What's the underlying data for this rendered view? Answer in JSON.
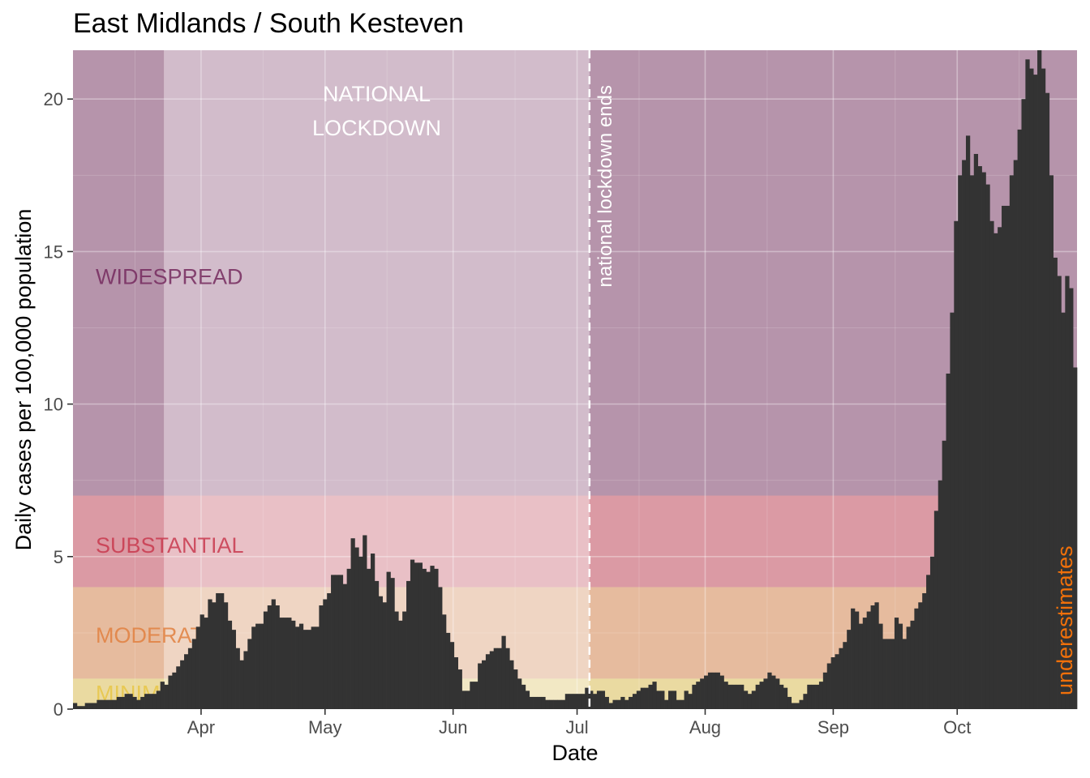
{
  "chart_data": {
    "type": "bar",
    "title": "East Midlands / South Kesteven",
    "xlabel": "Date",
    "ylabel": "Daily cases per 100,000 population",
    "x_start": "2020-03-01",
    "x_end": "2020-10-30",
    "ylim": [
      0,
      21.6
    ],
    "y_ticks": [
      0,
      5,
      10,
      15,
      20
    ],
    "x_ticks": [
      {
        "date": "2020-04-01",
        "label": "Apr"
      },
      {
        "date": "2020-05-01",
        "label": "May"
      },
      {
        "date": "2020-06-01",
        "label": "Jun"
      },
      {
        "date": "2020-07-01",
        "label": "Jul"
      },
      {
        "date": "2020-08-01",
        "label": "Aug"
      },
      {
        "date": "2020-09-01",
        "label": "Sep"
      },
      {
        "date": "2020-10-01",
        "label": "Oct"
      }
    ],
    "grid": true,
    "bands": [
      {
        "label": "MINIMAL",
        "from": 0,
        "to": 1,
        "color": "#e8c547"
      },
      {
        "label": "MODERATE",
        "from": 1,
        "to": 4,
        "color": "#e08040"
      },
      {
        "label": "SUBSTANTIAL",
        "from": 4,
        "to": 7,
        "color": "#c8384e"
      },
      {
        "label": "WIDESPREAD",
        "from": 7,
        "to": 21.6,
        "color": "#762a5e"
      }
    ],
    "lockdown": {
      "label_line1": "NATIONAL",
      "label_line2": "LOCKDOWN",
      "start": "2020-03-23",
      "end": "2020-07-04"
    },
    "vline": {
      "date": "2020-07-04",
      "label": "national lockdown ends"
    },
    "note": {
      "label": "underestimates",
      "color": "#f0700a"
    },
    "bar_color": "#333333",
    "values": [
      0.2,
      0.1,
      0.1,
      0.2,
      0.2,
      0.2,
      0.3,
      0.3,
      0.3,
      0.3,
      0.3,
      0.4,
      0.4,
      0.5,
      0.5,
      0.4,
      0.3,
      0.4,
      0.5,
      0.5,
      0.5,
      0.6,
      0.9,
      0.8,
      1.1,
      1.2,
      1.4,
      1.6,
      1.8,
      2.0,
      2.3,
      2.7,
      3.1,
      3.0,
      3.6,
      3.5,
      3.8,
      3.8,
      3.5,
      2.9,
      2.6,
      2.0,
      1.6,
      1.9,
      2.3,
      2.7,
      2.8,
      2.8,
      3.2,
      3.4,
      3.6,
      3.4,
      3.0,
      3.0,
      3.0,
      2.9,
      2.7,
      2.8,
      2.6,
      2.6,
      2.7,
      2.7,
      3.4,
      3.6,
      3.8,
      4.4,
      4.4,
      4.4,
      4.1,
      4.6,
      5.6,
      5.3,
      5.0,
      5.7,
      4.6,
      5.1,
      4.2,
      3.7,
      3.5,
      4.5,
      4.3,
      3.2,
      2.9,
      3.2,
      4.2,
      4.9,
      4.8,
      4.8,
      4.6,
      4.5,
      4.7,
      4.6,
      4.0,
      3.1,
      2.5,
      2.2,
      1.7,
      1.3,
      0.6,
      0.6,
      0.9,
      0.9,
      1.5,
      1.6,
      1.8,
      1.9,
      2.0,
      2.0,
      2.4,
      2.0,
      1.6,
      1.3,
      1.0,
      0.8,
      0.6,
      0.4,
      0.4,
      0.4,
      0.4,
      0.3,
      0.3,
      0.3,
      0.3,
      0.3,
      0.5,
      0.5,
      0.5,
      0.5,
      0.5,
      0.7,
      0.6,
      0.5,
      0.6,
      0.6,
      0.4,
      0.2,
      0.3,
      0.3,
      0.4,
      0.3,
      0.4,
      0.5,
      0.6,
      0.7,
      0.7,
      0.8,
      0.9,
      0.6,
      0.6,
      0.3,
      0.6,
      0.6,
      0.3,
      0.3,
      0.6,
      0.5,
      0.8,
      0.9,
      1.0,
      1.1,
      1.2,
      1.2,
      1.2,
      1.1,
      0.9,
      0.8,
      0.8,
      0.8,
      0.8,
      0.6,
      0.5,
      0.6,
      0.8,
      0.9,
      1.0,
      1.2,
      1.1,
      1.0,
      0.8,
      0.7,
      0.4,
      0.2,
      0.2,
      0.3,
      0.5,
      0.8,
      0.8,
      0.8,
      0.9,
      1.2,
      1.5,
      1.7,
      1.8,
      2.0,
      2.2,
      2.6,
      3.3,
      3.2,
      2.8,
      3.0,
      3.2,
      3.4,
      3.5,
      2.8,
      2.3,
      2.3,
      2.3,
      3.0,
      2.8,
      2.3,
      2.7,
      2.9,
      3.3,
      3.5,
      3.8,
      4.4,
      5.0,
      6.5,
      7.5,
      8.8,
      11.0,
      13.0,
      16.0,
      17.5,
      18.0,
      18.8,
      17.5,
      18.2,
      17.8,
      17.6,
      17.2,
      16.0,
      15.6,
      15.8,
      16.5,
      16.5,
      17.5,
      18.0,
      19.0,
      20.0,
      21.3,
      21.0,
      20.8,
      21.6,
      21.0,
      20.2,
      17.5,
      14.8,
      14.2,
      13.0,
      14.2,
      13.8,
      11.2
    ]
  }
}
